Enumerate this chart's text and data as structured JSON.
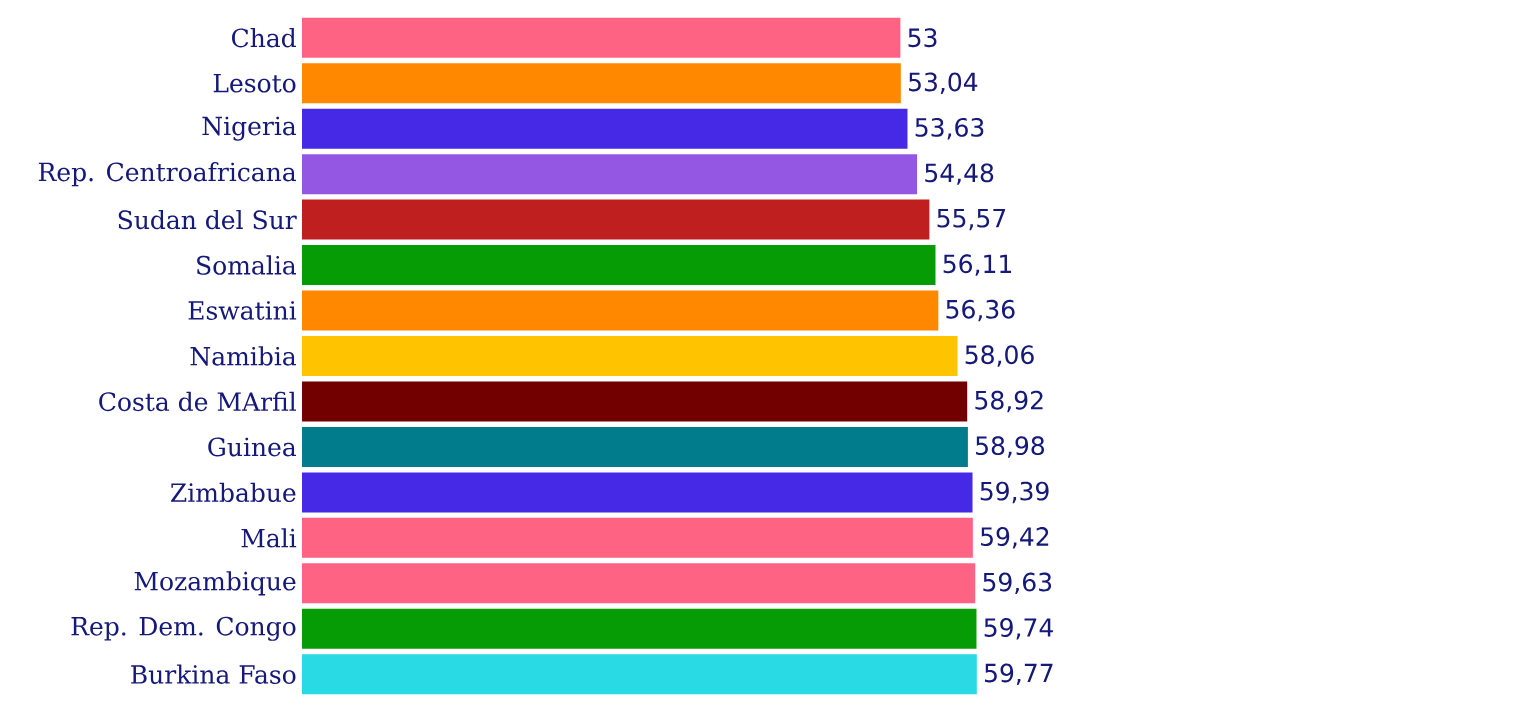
{
  "chart_data": {
    "type": "bar",
    "orientation": "horizontal",
    "categories": [
      "Chad",
      "Lesoto",
      "Nigeria",
      "Rep. Centroafricana",
      "Sudan del Sur",
      "Somalia",
      "Eswatini",
      "Namibia",
      "Costa de MArfil",
      "Guinea",
      "Zimbabue",
      "Mali",
      "Mozambique",
      "Rep. Dem. Congo",
      "Burkina Faso"
    ],
    "values": [
      53,
      53.04,
      53.63,
      54.48,
      55.57,
      56.11,
      56.36,
      58.06,
      58.92,
      58.98,
      59.39,
      59.42,
      59.63,
      59.74,
      59.77
    ],
    "colors": [
      "#ff6384",
      "#ff8800",
      "#4529e6",
      "#9457e3",
      "#c01f1f",
      "#059c05",
      "#ff8800",
      "#ffc300",
      "#720000",
      "#007c8c",
      "#4529e6",
      "#ff6384",
      "#ff6384",
      "#059c05",
      "#29d9e3"
    ],
    "value_labels": [
      "53",
      "53,04",
      "53,63",
      "54,48",
      "55,57",
      "56,11",
      "56,36",
      "58,06",
      "58,92",
      "58,98",
      "59,39",
      "59,42",
      "59,63",
      "59,74",
      "59,77"
    ],
    "tick_labels": "y"
  }
}
